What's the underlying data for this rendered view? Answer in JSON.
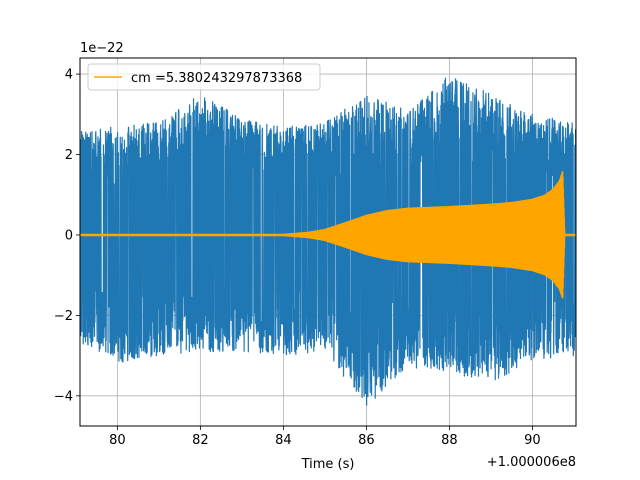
{
  "chart_data": {
    "type": "line",
    "title": "",
    "xlabel": "Time (s)",
    "ylabel": "",
    "x_offset_label": "+1.000006e8",
    "y_scale_label": "1e−22",
    "xlim": [
      79.1,
      91.05
    ],
    "ylim": [
      -4.75,
      4.4
    ],
    "x_ticks": [
      80,
      82,
      84,
      86,
      88,
      90
    ],
    "x_tick_labels": [
      "80",
      "82",
      "84",
      "86",
      "88",
      "90"
    ],
    "y_ticks": [
      -4,
      -2,
      0,
      2,
      4
    ],
    "y_tick_labels": [
      "−4",
      "−2",
      "0",
      "2",
      "4"
    ],
    "grid": true,
    "legend_position": "top-left",
    "series": [
      {
        "kind": "noise",
        "color": "#1f77b4",
        "envelope_x": [
          79.1,
          80,
          81,
          82,
          83,
          84,
          85,
          86,
          87,
          88,
          89,
          90,
          91.05
        ],
        "upper": [
          2.6,
          2.7,
          2.8,
          3.5,
          2.9,
          2.7,
          2.8,
          3.5,
          3.1,
          4.0,
          3.5,
          3.0,
          2.8
        ],
        "lower": [
          -2.7,
          -3.2,
          -3.0,
          -2.9,
          -2.9,
          -3.0,
          -2.9,
          -4.3,
          -3.3,
          -3.4,
          -3.7,
          -3.1,
          -3.0
        ]
      },
      {
        "kind": "chirp",
        "name": "cm =5.380243297873368",
        "color": "#ffa500",
        "envelope_x": [
          79.1,
          84.0,
          84.6,
          85.0,
          85.5,
          86.0,
          86.5,
          87.0,
          88.0,
          89.0,
          89.5,
          90.0,
          90.3,
          90.5,
          90.65,
          90.73,
          90.78,
          91.05
        ],
        "envelope": [
          0.03,
          0.03,
          0.08,
          0.15,
          0.32,
          0.5,
          0.62,
          0.68,
          0.72,
          0.78,
          0.82,
          0.9,
          1.0,
          1.15,
          1.35,
          1.6,
          0.03,
          0.03
        ]
      }
    ]
  }
}
